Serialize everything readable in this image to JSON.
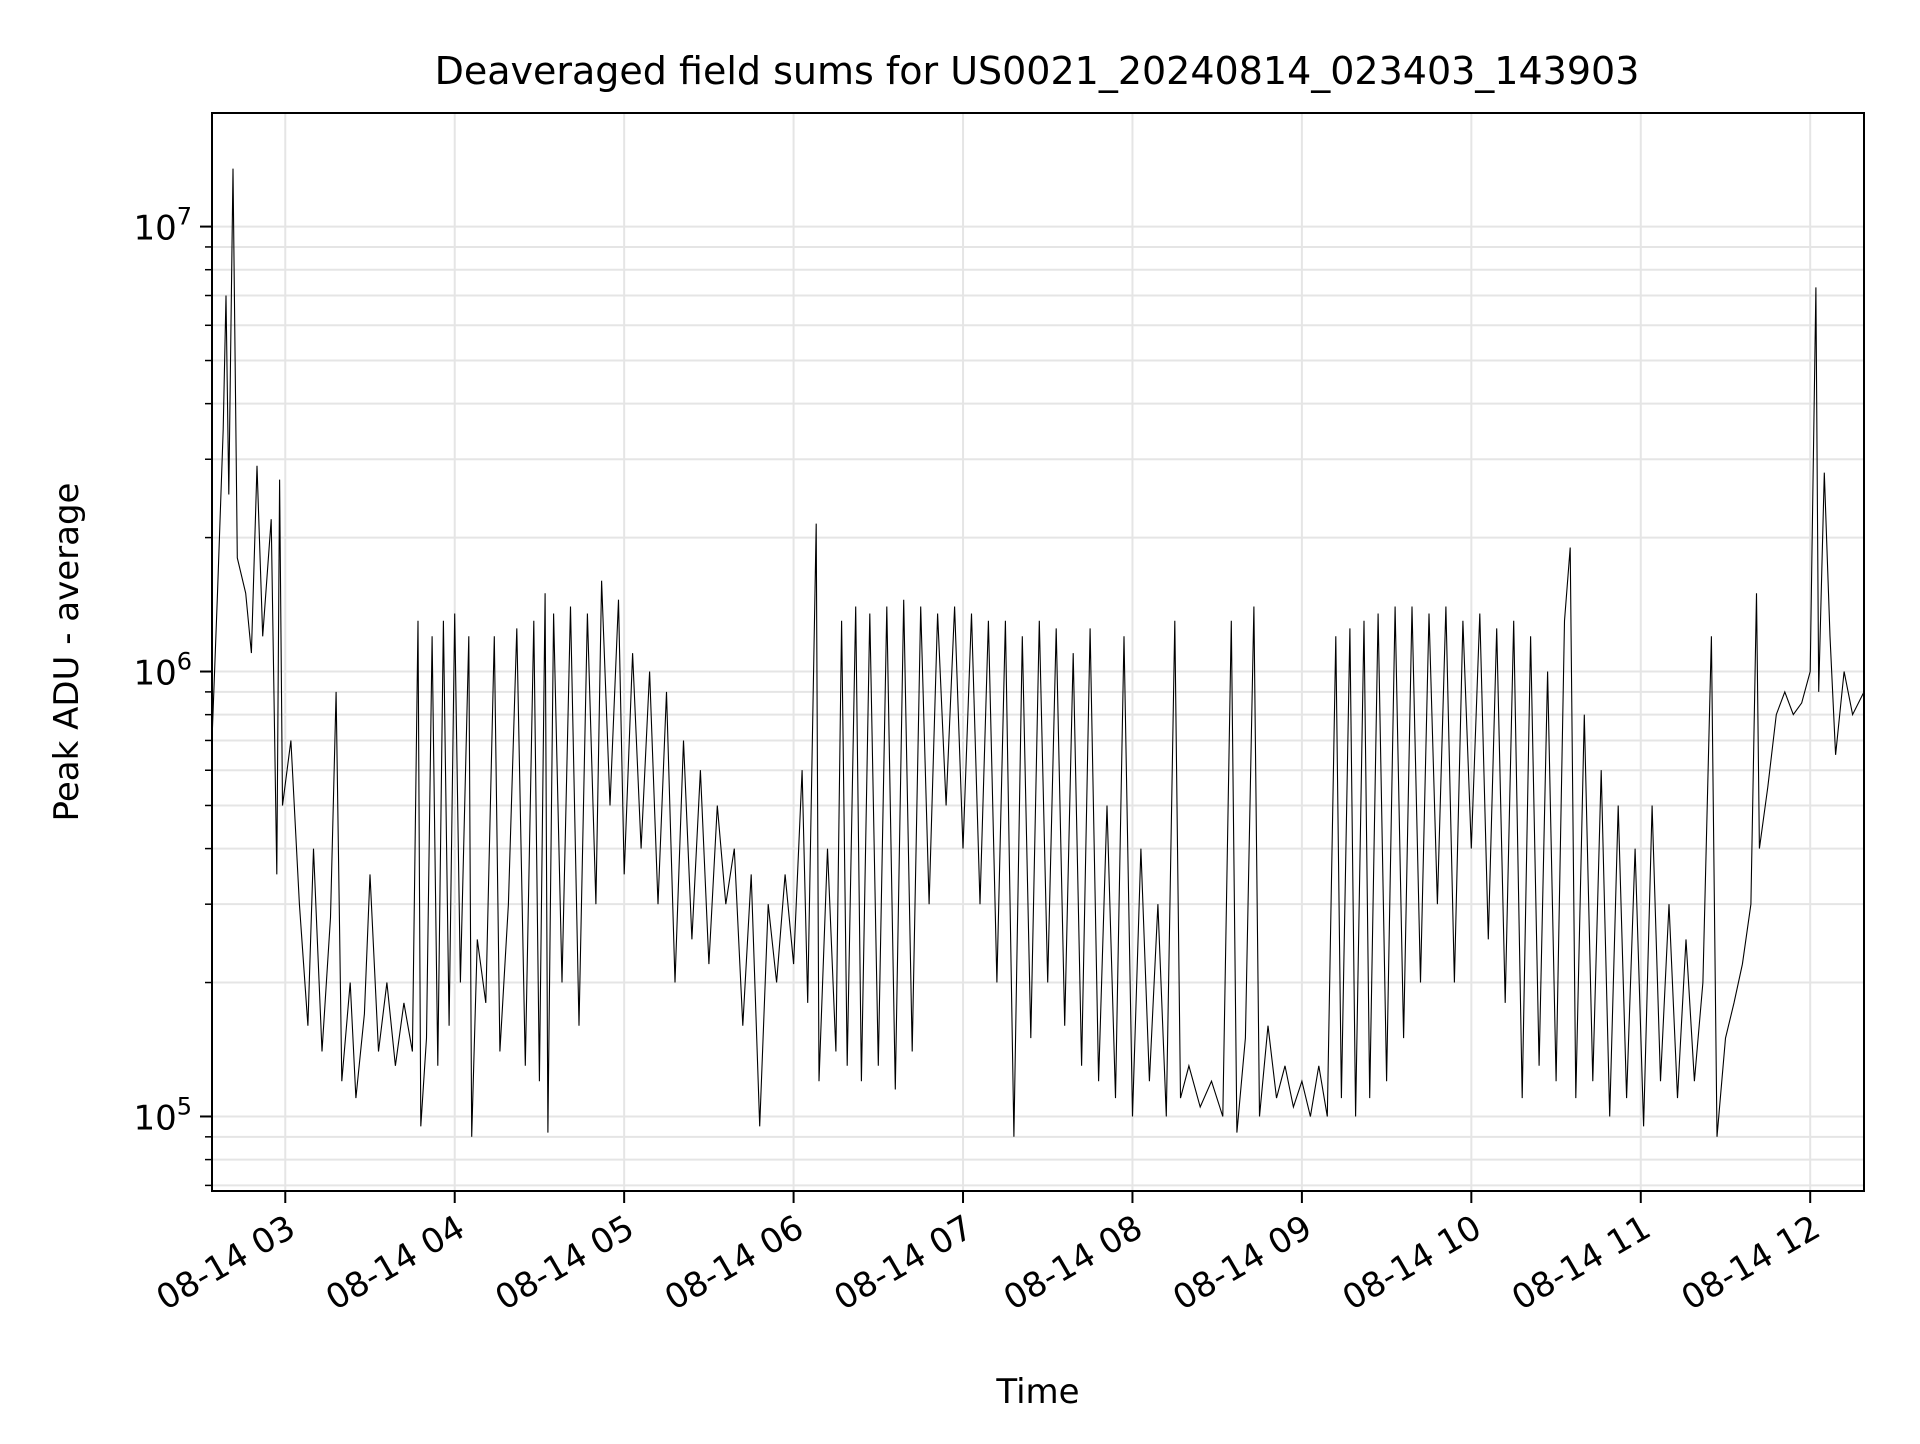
{
  "chart_data": {
    "type": "line",
    "title": "Deaveraged field sums for US0021_20240814_023403_143903",
    "xlabel": "Time",
    "ylabel": "Peak ADU - average",
    "xlim": [
      "2024-08-14T02:34:03",
      "2024-08-14T12:19:03"
    ],
    "ylim": [
      68000,
      18000000
    ],
    "yscale": "log",
    "grid": true,
    "legend": "none",
    "line_color": "#000000",
    "x_ticks": [
      {
        "value": "2024-08-14T03:00:00",
        "label": "08-14 03"
      },
      {
        "value": "2024-08-14T04:00:00",
        "label": "08-14 04"
      },
      {
        "value": "2024-08-14T05:00:00",
        "label": "08-14 05"
      },
      {
        "value": "2024-08-14T06:00:00",
        "label": "08-14 06"
      },
      {
        "value": "2024-08-14T07:00:00",
        "label": "08-14 07"
      },
      {
        "value": "2024-08-14T08:00:00",
        "label": "08-14 08"
      },
      {
        "value": "2024-08-14T09:00:00",
        "label": "08-14 09"
      },
      {
        "value": "2024-08-14T10:00:00",
        "label": "08-14 10"
      },
      {
        "value": "2024-08-14T11:00:00",
        "label": "08-14 11"
      },
      {
        "value": "2024-08-14T12:00:00",
        "label": "08-14 12"
      }
    ],
    "y_ticks": [
      {
        "value": 100000,
        "base": "10",
        "exp": "5"
      },
      {
        "value": 1000000,
        "base": "10",
        "exp": "6"
      },
      {
        "value": 10000000,
        "base": "10",
        "exp": "7"
      }
    ],
    "series": [
      {
        "points": [
          [
            "2024-08-14T02:34:03",
            700000
          ],
          [
            "2024-08-14T02:36:00",
            1500000
          ],
          [
            "2024-08-14T02:38:00",
            3500000
          ],
          [
            "2024-08-14T02:39:00",
            7000000
          ],
          [
            "2024-08-14T02:40:00",
            2500000
          ],
          [
            "2024-08-14T02:41:30",
            13500000
          ],
          [
            "2024-08-14T02:43:00",
            1800000
          ],
          [
            "2024-08-14T02:46:00",
            1500000
          ],
          [
            "2024-08-14T02:48:00",
            1100000
          ],
          [
            "2024-08-14T02:50:00",
            2900000
          ],
          [
            "2024-08-14T02:52:00",
            1200000
          ],
          [
            "2024-08-14T02:55:00",
            2200000
          ],
          [
            "2024-08-14T02:57:00",
            350000
          ],
          [
            "2024-08-14T02:58:00",
            2700000
          ],
          [
            "2024-08-14T02:59:00",
            500000
          ],
          [
            "2024-08-14T03:02:00",
            700000
          ],
          [
            "2024-08-14T03:05:00",
            300000
          ],
          [
            "2024-08-14T03:08:00",
            160000
          ],
          [
            "2024-08-14T03:10:00",
            400000
          ],
          [
            "2024-08-14T03:13:00",
            140000
          ],
          [
            "2024-08-14T03:16:00",
            280000
          ],
          [
            "2024-08-14T03:18:00",
            900000
          ],
          [
            "2024-08-14T03:20:00",
            120000
          ],
          [
            "2024-08-14T03:23:00",
            200000
          ],
          [
            "2024-08-14T03:25:00",
            110000
          ],
          [
            "2024-08-14T03:28:00",
            170000
          ],
          [
            "2024-08-14T03:30:00",
            350000
          ],
          [
            "2024-08-14T03:33:00",
            140000
          ],
          [
            "2024-08-14T03:36:00",
            200000
          ],
          [
            "2024-08-14T03:39:00",
            130000
          ],
          [
            "2024-08-14T03:42:00",
            180000
          ],
          [
            "2024-08-14T03:45:00",
            140000
          ],
          [
            "2024-08-14T03:47:00",
            1300000
          ],
          [
            "2024-08-14T03:48:00",
            95000
          ],
          [
            "2024-08-14T03:50:00",
            150000
          ],
          [
            "2024-08-14T03:52:00",
            1200000
          ],
          [
            "2024-08-14T03:54:00",
            130000
          ],
          [
            "2024-08-14T03:56:00",
            1300000
          ],
          [
            "2024-08-14T03:58:00",
            160000
          ],
          [
            "2024-08-14T04:00:00",
            1350000
          ],
          [
            "2024-08-14T04:02:00",
            200000
          ],
          [
            "2024-08-14T04:05:00",
            1200000
          ],
          [
            "2024-08-14T04:06:00",
            90000
          ],
          [
            "2024-08-14T04:08:00",
            250000
          ],
          [
            "2024-08-14T04:11:00",
            180000
          ],
          [
            "2024-08-14T04:14:00",
            1200000
          ],
          [
            "2024-08-14T04:16:00",
            140000
          ],
          [
            "2024-08-14T04:19:00",
            300000
          ],
          [
            "2024-08-14T04:22:00",
            1250000
          ],
          [
            "2024-08-14T04:25:00",
            130000
          ],
          [
            "2024-08-14T04:28:00",
            1300000
          ],
          [
            "2024-08-14T04:30:00",
            120000
          ],
          [
            "2024-08-14T04:32:00",
            1500000
          ],
          [
            "2024-08-14T04:33:00",
            92000
          ],
          [
            "2024-08-14T04:35:00",
            1350000
          ],
          [
            "2024-08-14T04:38:00",
            200000
          ],
          [
            "2024-08-14T04:41:00",
            1400000
          ],
          [
            "2024-08-14T04:44:00",
            160000
          ],
          [
            "2024-08-14T04:47:00",
            1350000
          ],
          [
            "2024-08-14T04:50:00",
            300000
          ],
          [
            "2024-08-14T04:52:00",
            1600000
          ],
          [
            "2024-08-14T04:55:00",
            500000
          ],
          [
            "2024-08-14T04:58:00",
            1450000
          ],
          [
            "2024-08-14T05:00:00",
            350000
          ],
          [
            "2024-08-14T05:03:00",
            1100000
          ],
          [
            "2024-08-14T05:06:00",
            400000
          ],
          [
            "2024-08-14T05:09:00",
            1000000
          ],
          [
            "2024-08-14T05:12:00",
            300000
          ],
          [
            "2024-08-14T05:15:00",
            900000
          ],
          [
            "2024-08-14T05:18:00",
            200000
          ],
          [
            "2024-08-14T05:21:00",
            700000
          ],
          [
            "2024-08-14T05:24:00",
            250000
          ],
          [
            "2024-08-14T05:27:00",
            600000
          ],
          [
            "2024-08-14T05:30:00",
            220000
          ],
          [
            "2024-08-14T05:33:00",
            500000
          ],
          [
            "2024-08-14T05:36:00",
            300000
          ],
          [
            "2024-08-14T05:39:00",
            400000
          ],
          [
            "2024-08-14T05:42:00",
            160000
          ],
          [
            "2024-08-14T05:45:00",
            350000
          ],
          [
            "2024-08-14T05:48:00",
            95000
          ],
          [
            "2024-08-14T05:51:00",
            300000
          ],
          [
            "2024-08-14T05:54:00",
            200000
          ],
          [
            "2024-08-14T05:57:00",
            350000
          ],
          [
            "2024-08-14T06:00:00",
            220000
          ],
          [
            "2024-08-14T06:03:00",
            600000
          ],
          [
            "2024-08-14T06:05:00",
            180000
          ],
          [
            "2024-08-14T06:08:00",
            2150000
          ],
          [
            "2024-08-14T06:09:00",
            120000
          ],
          [
            "2024-08-14T06:12:00",
            400000
          ],
          [
            "2024-08-14T06:15:00",
            140000
          ],
          [
            "2024-08-14T06:17:00",
            1300000
          ],
          [
            "2024-08-14T06:19:00",
            130000
          ],
          [
            "2024-08-14T06:22:00",
            1400000
          ],
          [
            "2024-08-14T06:24:00",
            120000
          ],
          [
            "2024-08-14T06:27:00",
            1350000
          ],
          [
            "2024-08-14T06:30:00",
            130000
          ],
          [
            "2024-08-14T06:33:00",
            1400000
          ],
          [
            "2024-08-14T06:36:00",
            115000
          ],
          [
            "2024-08-14T06:39:00",
            1450000
          ],
          [
            "2024-08-14T06:42:00",
            140000
          ],
          [
            "2024-08-14T06:45:00",
            1400000
          ],
          [
            "2024-08-14T06:48:00",
            300000
          ],
          [
            "2024-08-14T06:51:00",
            1350000
          ],
          [
            "2024-08-14T06:54:00",
            500000
          ],
          [
            "2024-08-14T06:57:00",
            1400000
          ],
          [
            "2024-08-14T07:00:00",
            400000
          ],
          [
            "2024-08-14T07:03:00",
            1350000
          ],
          [
            "2024-08-14T07:06:00",
            300000
          ],
          [
            "2024-08-14T07:09:00",
            1300000
          ],
          [
            "2024-08-14T07:12:00",
            200000
          ],
          [
            "2024-08-14T07:15:00",
            1300000
          ],
          [
            "2024-08-14T07:18:00",
            90000
          ],
          [
            "2024-08-14T07:21:00",
            1200000
          ],
          [
            "2024-08-14T07:24:00",
            150000
          ],
          [
            "2024-08-14T07:27:00",
            1300000
          ],
          [
            "2024-08-14T07:30:00",
            200000
          ],
          [
            "2024-08-14T07:33:00",
            1250000
          ],
          [
            "2024-08-14T07:36:00",
            160000
          ],
          [
            "2024-08-14T07:39:00",
            1100000
          ],
          [
            "2024-08-14T07:42:00",
            130000
          ],
          [
            "2024-08-14T07:45:00",
            1250000
          ],
          [
            "2024-08-14T07:48:00",
            120000
          ],
          [
            "2024-08-14T07:51:00",
            500000
          ],
          [
            "2024-08-14T07:54:00",
            110000
          ],
          [
            "2024-08-14T07:57:00",
            1200000
          ],
          [
            "2024-08-14T08:00:00",
            100000
          ],
          [
            "2024-08-14T08:03:00",
            400000
          ],
          [
            "2024-08-14T08:06:00",
            120000
          ],
          [
            "2024-08-14T08:09:00",
            300000
          ],
          [
            "2024-08-14T08:12:00",
            100000
          ],
          [
            "2024-08-14T08:15:00",
            1300000
          ],
          [
            "2024-08-14T08:17:00",
            110000
          ],
          [
            "2024-08-14T08:20:00",
            130000
          ],
          [
            "2024-08-14T08:24:00",
            105000
          ],
          [
            "2024-08-14T08:28:00",
            120000
          ],
          [
            "2024-08-14T08:32:00",
            100000
          ],
          [
            "2024-08-14T08:35:00",
            1300000
          ],
          [
            "2024-08-14T08:37:00",
            92000
          ],
          [
            "2024-08-14T08:40:00",
            150000
          ],
          [
            "2024-08-14T08:43:00",
            1400000
          ],
          [
            "2024-08-14T08:45:00",
            100000
          ],
          [
            "2024-08-14T08:48:00",
            160000
          ],
          [
            "2024-08-14T08:51:00",
            110000
          ],
          [
            "2024-08-14T08:54:00",
            130000
          ],
          [
            "2024-08-14T08:57:00",
            105000
          ],
          [
            "2024-08-14T09:00:00",
            120000
          ],
          [
            "2024-08-14T09:03:00",
            100000
          ],
          [
            "2024-08-14T09:06:00",
            130000
          ],
          [
            "2024-08-14T09:09:00",
            100000
          ],
          [
            "2024-08-14T09:12:00",
            1200000
          ],
          [
            "2024-08-14T09:14:00",
            110000
          ],
          [
            "2024-08-14T09:17:00",
            1250000
          ],
          [
            "2024-08-14T09:19:00",
            100000
          ],
          [
            "2024-08-14T09:22:00",
            1300000
          ],
          [
            "2024-08-14T09:24:00",
            110000
          ],
          [
            "2024-08-14T09:27:00",
            1350000
          ],
          [
            "2024-08-14T09:30:00",
            120000
          ],
          [
            "2024-08-14T09:33:00",
            1400000
          ],
          [
            "2024-08-14T09:36:00",
            150000
          ],
          [
            "2024-08-14T09:39:00",
            1400000
          ],
          [
            "2024-08-14T09:42:00",
            200000
          ],
          [
            "2024-08-14T09:45:00",
            1350000
          ],
          [
            "2024-08-14T09:48:00",
            300000
          ],
          [
            "2024-08-14T09:51:00",
            1400000
          ],
          [
            "2024-08-14T09:54:00",
            200000
          ],
          [
            "2024-08-14T09:57:00",
            1300000
          ],
          [
            "2024-08-14T10:00:00",
            400000
          ],
          [
            "2024-08-14T10:03:00",
            1350000
          ],
          [
            "2024-08-14T10:06:00",
            250000
          ],
          [
            "2024-08-14T10:09:00",
            1250000
          ],
          [
            "2024-08-14T10:12:00",
            180000
          ],
          [
            "2024-08-14T10:15:00",
            1300000
          ],
          [
            "2024-08-14T10:18:00",
            110000
          ],
          [
            "2024-08-14T10:21:00",
            1200000
          ],
          [
            "2024-08-14T10:24:00",
            130000
          ],
          [
            "2024-08-14T10:27:00",
            1000000
          ],
          [
            "2024-08-14T10:30:00",
            120000
          ],
          [
            "2024-08-14T10:33:00",
            1300000
          ],
          [
            "2024-08-14T10:35:00",
            1900000
          ],
          [
            "2024-08-14T10:37:00",
            110000
          ],
          [
            "2024-08-14T10:40:00",
            800000
          ],
          [
            "2024-08-14T10:43:00",
            120000
          ],
          [
            "2024-08-14T10:46:00",
            600000
          ],
          [
            "2024-08-14T10:49:00",
            100000
          ],
          [
            "2024-08-14T10:52:00",
            500000
          ],
          [
            "2024-08-14T10:55:00",
            110000
          ],
          [
            "2024-08-14T10:58:00",
            400000
          ],
          [
            "2024-08-14T11:01:00",
            95000
          ],
          [
            "2024-08-14T11:04:00",
            500000
          ],
          [
            "2024-08-14T11:07:00",
            120000
          ],
          [
            "2024-08-14T11:10:00",
            300000
          ],
          [
            "2024-08-14T11:13:00",
            110000
          ],
          [
            "2024-08-14T11:16:00",
            250000
          ],
          [
            "2024-08-14T11:19:00",
            120000
          ],
          [
            "2024-08-14T11:22:00",
            200000
          ],
          [
            "2024-08-14T11:25:00",
            1200000
          ],
          [
            "2024-08-14T11:27:00",
            90000
          ],
          [
            "2024-08-14T11:30:00",
            150000
          ],
          [
            "2024-08-14T11:33:00",
            180000
          ],
          [
            "2024-08-14T11:36:00",
            220000
          ],
          [
            "2024-08-14T11:39:00",
            300000
          ],
          [
            "2024-08-14T11:41:00",
            1500000
          ],
          [
            "2024-08-14T11:42:00",
            400000
          ],
          [
            "2024-08-14T11:45:00",
            550000
          ],
          [
            "2024-08-14T11:48:00",
            800000
          ],
          [
            "2024-08-14T11:51:00",
            900000
          ],
          [
            "2024-08-14T11:54:00",
            800000
          ],
          [
            "2024-08-14T11:57:00",
            850000
          ],
          [
            "2024-08-14T12:00:00",
            1000000
          ],
          [
            "2024-08-14T12:02:00",
            7300000
          ],
          [
            "2024-08-14T12:03:00",
            900000
          ],
          [
            "2024-08-14T12:05:00",
            2800000
          ],
          [
            "2024-08-14T12:07:00",
            1200000
          ],
          [
            "2024-08-14T12:09:00",
            650000
          ],
          [
            "2024-08-14T12:12:00",
            1000000
          ],
          [
            "2024-08-14T12:15:00",
            800000
          ],
          [
            "2024-08-14T12:19:03",
            900000
          ]
        ]
      }
    ]
  }
}
